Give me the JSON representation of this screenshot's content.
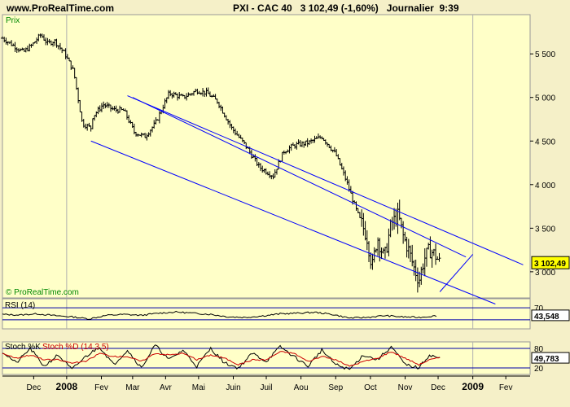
{
  "header": {
    "site": "www.ProRealTime.com",
    "instrument": "PXI - CAC 40",
    "price": "3 102,49 (-1,60%)",
    "period": "Journalier",
    "time": "9:39"
  },
  "colors": {
    "background": "#F5F0C8",
    "plot_background": "#FFFFC8",
    "channel_lines": "#0000FF",
    "rsi_line": "#000000",
    "stoch_k": "#000000",
    "stoch_d": "#CC0000",
    "price_tag": "#FFFF00"
  },
  "chart_data": [
    {
      "type": "ohlc",
      "panel": "price",
      "title": "Prix",
      "watermark": "© ProRealTime.com",
      "ylim": [
        2700,
        5950
      ],
      "yticks": [
        3000,
        3500,
        4000,
        4500,
        5000,
        5500
      ],
      "ytick_labels": [
        "3 000",
        "3 500",
        "4 000",
        "4 500",
        "5 000",
        "5 500"
      ],
      "last_value_label": "3 102,49",
      "x_labels": [
        {
          "label": "Dec",
          "t": 0.9
        },
        {
          "label": "2008",
          "t": 1.85,
          "bold": true
        },
        {
          "label": "Fev",
          "t": 2.85
        },
        {
          "label": "Mar",
          "t": 3.75
        },
        {
          "label": "Avr",
          "t": 4.7
        },
        {
          "label": "Mai",
          "t": 5.65
        },
        {
          "label": "Juin",
          "t": 6.65
        },
        {
          "label": "Juil",
          "t": 7.6
        },
        {
          "label": "Aou",
          "t": 8.6
        },
        {
          "label": "Sep",
          "t": 9.6
        },
        {
          "label": "Oct",
          "t": 10.6
        },
        {
          "label": "Nov",
          "t": 11.6
        },
        {
          "label": "Dec",
          "t": 12.55
        },
        {
          "label": "2009",
          "t": 13.55,
          "bold": true
        },
        {
          "label": "Fev",
          "t": 14.5
        }
      ],
      "xlim": [
        0,
        15.2
      ],
      "vgrid_t": [
        1.85,
        13.55
      ],
      "series": [
        {
          "kind": "price",
          "t": [
            0,
            0.3,
            0.6,
            0.85,
            1.1,
            1.3,
            1.5,
            1.8,
            2.05,
            2.3,
            2.55,
            2.6,
            2.9,
            3.2,
            3.5,
            3.8,
            4.1,
            4.4,
            4.8,
            5.2,
            5.6,
            5.9,
            6.2,
            6.6,
            7.0,
            7.4,
            7.8,
            8.1,
            8.4,
            8.8,
            9.2,
            9.6,
            9.9,
            10.2,
            10.5,
            10.65,
            10.8,
            11.0,
            11.2,
            11.4,
            11.55,
            11.7,
            11.85,
            12.0,
            12.15,
            12.3,
            12.45,
            12.6
          ],
          "close": [
            5680,
            5600,
            5520,
            5600,
            5720,
            5620,
            5650,
            5500,
            5300,
            4700,
            4650,
            4780,
            4920,
            4860,
            4850,
            4600,
            4550,
            4700,
            5050,
            5000,
            5080,
            5050,
            4950,
            4650,
            4450,
            4200,
            4100,
            4380,
            4450,
            4480,
            4550,
            4350,
            4050,
            3700,
            3400,
            3050,
            3400,
            3150,
            3550,
            3650,
            3400,
            3250,
            3050,
            2900,
            3150,
            3250,
            3200,
            3100
          ]
        }
      ],
      "channel_lines": [
        {
          "from": {
            "t": 2.55,
            "y": 4500
          },
          "to": {
            "t": 14.2,
            "y": 2630
          }
        },
        {
          "from": {
            "t": 3.75,
            "y": 5000
          },
          "to": {
            "t": 13.35,
            "y": 3170
          }
        },
        {
          "from": {
            "t": 3.6,
            "y": 5020
          },
          "to": {
            "t": 15.0,
            "y": 3080
          }
        },
        {
          "from": {
            "t": 12.6,
            "y": 2770
          },
          "to": {
            "t": 13.55,
            "y": 3200
          }
        }
      ]
    },
    {
      "type": "line",
      "panel": "rsi",
      "title": "RSI (14)",
      "ylim": [
        0,
        100
      ],
      "levels": [
        30,
        70
      ],
      "ytick_labels": [
        "70"
      ],
      "last_value_label": "43,548",
      "series": [
        {
          "name": "RSI (14)",
          "t": [
            0,
            0.5,
            1.0,
            1.5,
            2.0,
            2.5,
            2.7,
            3.0,
            3.5,
            4.0,
            4.5,
            5.0,
            5.5,
            6.0,
            6.5,
            7.0,
            7.5,
            8.0,
            8.5,
            9.0,
            9.5,
            10.0,
            10.5,
            11.0,
            11.5,
            12.0,
            12.5
          ],
          "values": [
            48,
            46,
            50,
            44,
            40,
            33,
            38,
            45,
            48,
            45,
            52,
            56,
            52,
            48,
            40,
            38,
            43,
            50,
            52,
            55,
            48,
            36,
            38,
            44,
            40,
            38,
            43.548
          ]
        }
      ]
    },
    {
      "type": "line",
      "panel": "stoch",
      "title": "Stoch %K",
      "title_2": "Stoch %D (14,3,5)",
      "ylim": [
        0,
        100
      ],
      "levels": [
        20,
        80
      ],
      "ytick_labels": [
        "80",
        "20"
      ],
      "last_value_label": "49,783",
      "series": [
        {
          "name": "Stoch %K",
          "t": [
            0,
            0.4,
            0.8,
            1.2,
            1.6,
            2.0,
            2.4,
            2.8,
            3.2,
            3.6,
            4.0,
            4.4,
            4.8,
            5.2,
            5.6,
            6.0,
            6.4,
            6.8,
            7.2,
            7.6,
            8.0,
            8.4,
            8.8,
            9.2,
            9.6,
            10.0,
            10.4,
            10.8,
            11.2,
            11.6,
            12.0,
            12.3,
            12.6
          ],
          "values": [
            70,
            35,
            80,
            25,
            60,
            15,
            55,
            85,
            30,
            75,
            20,
            90,
            45,
            75,
            25,
            80,
            35,
            20,
            65,
            40,
            85,
            55,
            25,
            75,
            30,
            15,
            60,
            45,
            85,
            30,
            20,
            60,
            49.783
          ]
        },
        {
          "name": "Stoch %D",
          "t": [
            0,
            0.4,
            0.8,
            1.2,
            1.6,
            2.0,
            2.4,
            2.8,
            3.2,
            3.6,
            4.0,
            4.4,
            4.8,
            5.2,
            5.6,
            6.0,
            6.4,
            6.8,
            7.2,
            7.6,
            8.0,
            8.4,
            8.8,
            9.2,
            9.6,
            10.0,
            10.4,
            10.8,
            11.2,
            11.6,
            12.0,
            12.3,
            12.6
          ],
          "values": [
            65,
            50,
            60,
            45,
            45,
            35,
            40,
            65,
            55,
            55,
            40,
            65,
            60,
            65,
            45,
            60,
            50,
            30,
            45,
            45,
            70,
            65,
            40,
            55,
            45,
            25,
            40,
            50,
            70,
            50,
            30,
            45,
            52
          ]
        }
      ]
    }
  ]
}
